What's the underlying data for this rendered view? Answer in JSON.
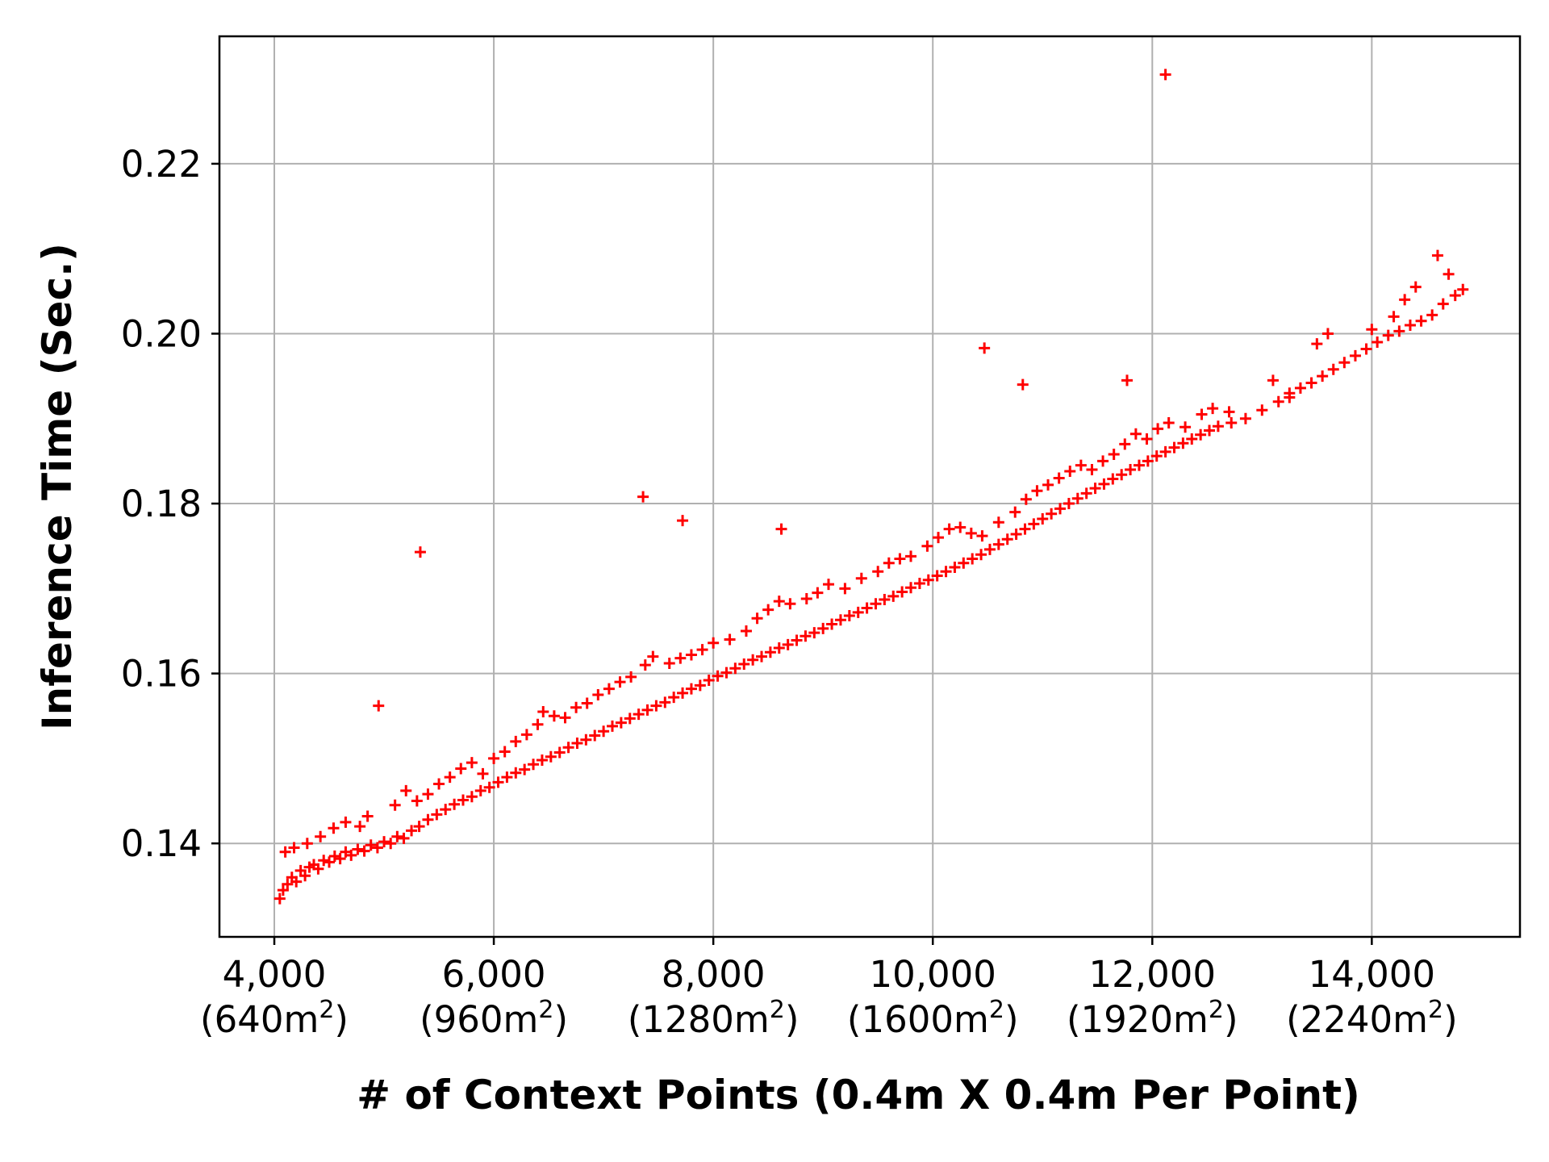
{
  "chart_data": {
    "type": "scatter",
    "xlabel": "# of Context Points (0.4m X 0.4m Per Point)",
    "ylabel": "Inference Time (Sec.)",
    "xlim": [
      3500,
      15350
    ],
    "ylim": [
      0.129,
      0.235
    ],
    "grid": true,
    "marker": "+",
    "series_color": "#ff0000",
    "x_ticks": [
      {
        "value": 4000,
        "label": "4,000",
        "area": "(640m",
        "sup": "2",
        "close": ")"
      },
      {
        "value": 6000,
        "label": "6,000",
        "area": "(960m",
        "sup": "2",
        "close": ")"
      },
      {
        "value": 8000,
        "label": "8,000",
        "area": "(1280m",
        "sup": "2",
        "close": ")"
      },
      {
        "value": 10000,
        "label": "10,000",
        "area": "(1600m",
        "sup": "2",
        "close": ")"
      },
      {
        "value": 12000,
        "label": "12,000",
        "area": "(1920m",
        "sup": "2",
        "close": ")"
      },
      {
        "value": 14000,
        "label": "14,000",
        "area": "(2240m",
        "sup": "2",
        "close": ")"
      }
    ],
    "y_ticks": [
      {
        "value": 0.14,
        "label": "0.14"
      },
      {
        "value": 0.16,
        "label": "0.16"
      },
      {
        "value": 0.18,
        "label": "0.18"
      },
      {
        "value": 0.2,
        "label": "0.20"
      },
      {
        "value": 0.22,
        "label": "0.22"
      }
    ],
    "points": [
      [
        4050,
        0.1335
      ],
      [
        4080,
        0.1345
      ],
      [
        4120,
        0.1352
      ],
      [
        4160,
        0.136
      ],
      [
        4200,
        0.1355
      ],
      [
        4240,
        0.1368
      ],
      [
        4280,
        0.1362
      ],
      [
        4320,
        0.1372
      ],
      [
        4360,
        0.1375
      ],
      [
        4400,
        0.137
      ],
      [
        4450,
        0.138
      ],
      [
        4500,
        0.1378
      ],
      [
        4550,
        0.1385
      ],
      [
        4600,
        0.1382
      ],
      [
        4650,
        0.139
      ],
      [
        4700,
        0.1386
      ],
      [
        4760,
        0.1393
      ],
      [
        4820,
        0.1391
      ],
      [
        4880,
        0.1398
      ],
      [
        4940,
        0.1395
      ],
      [
        5000,
        0.1402
      ],
      [
        5060,
        0.14
      ],
      [
        5120,
        0.1408
      ],
      [
        5180,
        0.1406
      ],
      [
        5250,
        0.1415
      ],
      [
        5320,
        0.142
      ],
      [
        5400,
        0.1428
      ],
      [
        5480,
        0.1434
      ],
      [
        5560,
        0.144
      ],
      [
        5640,
        0.1446
      ],
      [
        5720,
        0.1451
      ],
      [
        5800,
        0.1455
      ],
      [
        5880,
        0.1462
      ],
      [
        5960,
        0.1466
      ],
      [
        6040,
        0.1472
      ],
      [
        6120,
        0.1478
      ],
      [
        6200,
        0.1483
      ],
      [
        6280,
        0.1487
      ],
      [
        6360,
        0.1493
      ],
      [
        6440,
        0.1498
      ],
      [
        6520,
        0.1502
      ],
      [
        6600,
        0.1507
      ],
      [
        6680,
        0.1513
      ],
      [
        6760,
        0.1518
      ],
      [
        6840,
        0.1522
      ],
      [
        6920,
        0.1527
      ],
      [
        7000,
        0.1532
      ],
      [
        7080,
        0.1538
      ],
      [
        7160,
        0.1542
      ],
      [
        7240,
        0.1547
      ],
      [
        7320,
        0.1552
      ],
      [
        7400,
        0.1557
      ],
      [
        7480,
        0.1562
      ],
      [
        7560,
        0.1566
      ],
      [
        7640,
        0.1572
      ],
      [
        7720,
        0.1577
      ],
      [
        7800,
        0.1582
      ],
      [
        7880,
        0.1586
      ],
      [
        7960,
        0.1592
      ],
      [
        8040,
        0.1597
      ],
      [
        8120,
        0.1601
      ],
      [
        8200,
        0.1606
      ],
      [
        8280,
        0.1611
      ],
      [
        8360,
        0.1616
      ],
      [
        8440,
        0.162
      ],
      [
        8520,
        0.1625
      ],
      [
        8600,
        0.163
      ],
      [
        8680,
        0.1634
      ],
      [
        8760,
        0.1639
      ],
      [
        8840,
        0.1644
      ],
      [
        8920,
        0.1648
      ],
      [
        9000,
        0.1653
      ],
      [
        9080,
        0.1658
      ],
      [
        9160,
        0.1663
      ],
      [
        9240,
        0.1668
      ],
      [
        9320,
        0.1672
      ],
      [
        9400,
        0.1677
      ],
      [
        9480,
        0.1682
      ],
      [
        9560,
        0.1687
      ],
      [
        9640,
        0.1691
      ],
      [
        9720,
        0.1696
      ],
      [
        9800,
        0.1701
      ],
      [
        9880,
        0.1706
      ],
      [
        9960,
        0.171
      ],
      [
        10040,
        0.1715
      ],
      [
        10120,
        0.172
      ],
      [
        10200,
        0.1725
      ],
      [
        10280,
        0.173
      ],
      [
        10360,
        0.1735
      ],
      [
        10440,
        0.174
      ],
      [
        10520,
        0.1746
      ],
      [
        10600,
        0.1752
      ],
      [
        10680,
        0.1758
      ],
      [
        10760,
        0.1764
      ],
      [
        10840,
        0.177
      ],
      [
        10920,
        0.1776
      ],
      [
        11000,
        0.1782
      ],
      [
        11080,
        0.1788
      ],
      [
        11160,
        0.1794
      ],
      [
        11240,
        0.18
      ],
      [
        11320,
        0.1806
      ],
      [
        11400,
        0.1812
      ],
      [
        11480,
        0.1818
      ],
      [
        11560,
        0.1823
      ],
      [
        11640,
        0.1829
      ],
      [
        11720,
        0.1834
      ],
      [
        11800,
        0.184
      ],
      [
        11880,
        0.1845
      ],
      [
        11960,
        0.185
      ],
      [
        12040,
        0.1856
      ],
      [
        12120,
        0.1861
      ],
      [
        12200,
        0.1866
      ],
      [
        12280,
        0.1871
      ],
      [
        12360,
        0.1876
      ],
      [
        12440,
        0.1881
      ],
      [
        12520,
        0.1886
      ],
      [
        12600,
        0.1891
      ],
      [
        12720,
        0.1895
      ],
      [
        12850,
        0.19
      ],
      [
        13000,
        0.191
      ],
      [
        13150,
        0.192
      ],
      [
        13250,
        0.193
      ],
      [
        13350,
        0.1936
      ],
      [
        13450,
        0.1942
      ],
      [
        13550,
        0.195
      ],
      [
        13650,
        0.1958
      ],
      [
        13750,
        0.1966
      ],
      [
        13850,
        0.1974
      ],
      [
        13950,
        0.1982
      ],
      [
        14050,
        0.199
      ],
      [
        14150,
        0.1998
      ],
      [
        14250,
        0.2003
      ],
      [
        14350,
        0.201
      ],
      [
        14450,
        0.2015
      ],
      [
        14550,
        0.2022
      ],
      [
        14650,
        0.2035
      ],
      [
        14760,
        0.2045
      ],
      [
        14830,
        0.2052
      ],
      [
        4100,
        0.139
      ],
      [
        4180,
        0.1395
      ],
      [
        4300,
        0.14
      ],
      [
        4420,
        0.1408
      ],
      [
        4540,
        0.1418
      ],
      [
        4650,
        0.1425
      ],
      [
        4780,
        0.142
      ],
      [
        4850,
        0.1432
      ],
      [
        5100,
        0.1445
      ],
      [
        5200,
        0.1462
      ],
      [
        5300,
        0.145
      ],
      [
        5400,
        0.1458
      ],
      [
        5500,
        0.147
      ],
      [
        5600,
        0.1478
      ],
      [
        5700,
        0.1488
      ],
      [
        5800,
        0.1495
      ],
      [
        5900,
        0.1482
      ],
      [
        6000,
        0.15
      ],
      [
        6100,
        0.1508
      ],
      [
        6200,
        0.152
      ],
      [
        6300,
        0.1528
      ],
      [
        6400,
        0.154
      ],
      [
        6450,
        0.1555
      ],
      [
        6550,
        0.155
      ],
      [
        6650,
        0.1548
      ],
      [
        6750,
        0.156
      ],
      [
        6850,
        0.1565
      ],
      [
        6950,
        0.1575
      ],
      [
        7050,
        0.1582
      ],
      [
        7150,
        0.159
      ],
      [
        7250,
        0.1596
      ],
      [
        7380,
        0.161
      ],
      [
        7450,
        0.162
      ],
      [
        7600,
        0.1612
      ],
      [
        7700,
        0.1618
      ],
      [
        7800,
        0.1622
      ],
      [
        7900,
        0.1628
      ],
      [
        8000,
        0.1636
      ],
      [
        8150,
        0.164
      ],
      [
        8300,
        0.165
      ],
      [
        8400,
        0.1665
      ],
      [
        8500,
        0.1675
      ],
      [
        8600,
        0.1685
      ],
      [
        8700,
        0.1682
      ],
      [
        8850,
        0.1688
      ],
      [
        8950,
        0.1695
      ],
      [
        9050,
        0.1705
      ],
      [
        9200,
        0.17
      ],
      [
        9350,
        0.1712
      ],
      [
        9500,
        0.172
      ],
      [
        9600,
        0.173
      ],
      [
        9700,
        0.1735
      ],
      [
        9800,
        0.1738
      ],
      [
        9950,
        0.175
      ],
      [
        10050,
        0.176
      ],
      [
        10150,
        0.177
      ],
      [
        10250,
        0.1772
      ],
      [
        10350,
        0.1765
      ],
      [
        10450,
        0.1762
      ],
      [
        10600,
        0.1778
      ],
      [
        10750,
        0.179
      ],
      [
        10850,
        0.1805
      ],
      [
        10950,
        0.1815
      ],
      [
        11050,
        0.1822
      ],
      [
        11150,
        0.183
      ],
      [
        11250,
        0.1838
      ],
      [
        11350,
        0.1845
      ],
      [
        11450,
        0.184
      ],
      [
        11550,
        0.185
      ],
      [
        11650,
        0.1858
      ],
      [
        11750,
        0.187
      ],
      [
        11850,
        0.1882
      ],
      [
        11950,
        0.1876
      ],
      [
        12050,
        0.1888
      ],
      [
        12150,
        0.1895
      ],
      [
        12300,
        0.189
      ],
      [
        12450,
        0.1905
      ],
      [
        12550,
        0.1912
      ],
      [
        12700,
        0.1908
      ],
      [
        13100,
        0.1945
      ],
      [
        13250,
        0.1925
      ],
      [
        13500,
        0.1988
      ],
      [
        13600,
        0.2
      ],
      [
        14000,
        0.2005
      ],
      [
        14200,
        0.202
      ],
      [
        14300,
        0.204
      ],
      [
        14400,
        0.2055
      ],
      [
        14700,
        0.207
      ],
      [
        14600,
        0.2092
      ],
      [
        4950,
        0.1562
      ],
      [
        5330,
        0.1743
      ],
      [
        7360,
        0.1808
      ],
      [
        7720,
        0.178
      ],
      [
        8620,
        0.177
      ],
      [
        10470,
        0.1983
      ],
      [
        10820,
        0.194
      ],
      [
        11770,
        0.1945
      ],
      [
        12120,
        0.2305
      ]
    ]
  }
}
